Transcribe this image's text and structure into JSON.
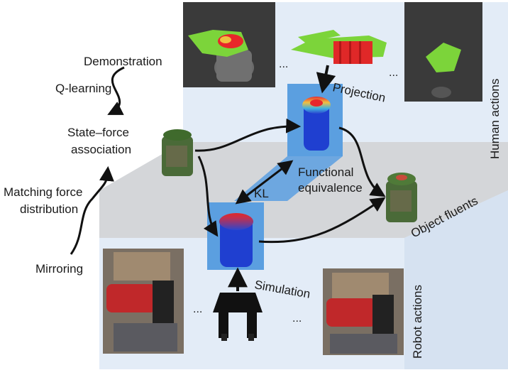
{
  "left_panel": {
    "demonstration": "Demonstration",
    "q_learning": "Q-learning",
    "state_force_1": "State–force",
    "state_force_2": "association",
    "matching_1": "Matching force",
    "matching_2": "distribution",
    "mirroring": "Mirroring"
  },
  "layers": {
    "human_actions": "Human actions",
    "object_fluents": "Object fluents",
    "robot_actions": "Robot actions"
  },
  "center": {
    "projection": "Projection",
    "functional_1": "Functional",
    "functional_2": "equivalence",
    "kl": "KL",
    "simulation": "Simulation",
    "ellipsis": "..."
  },
  "colors": {
    "plane_light": "#dde8f5",
    "plane_floor": "#d8dadd",
    "panel_blue": "#5b9fe0",
    "jar_blue": "#1f3fd0",
    "heat_red": "#e8262a",
    "hand_green": "#7cd43a"
  }
}
